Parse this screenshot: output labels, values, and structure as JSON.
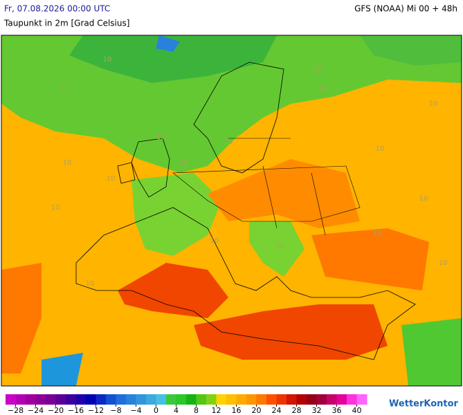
{
  "header": {
    "date": "Fr, 07.08.2026 00:00 UTC",
    "model": "GFS (NOAA) Mi 00 + 48h",
    "subtitle": "Taupunkt in 2m [Grad Celsius]"
  },
  "map": {
    "contour_labels": [
      "10",
      "10",
      "10",
      "10",
      "10",
      "10",
      "10",
      "10",
      "10",
      "10",
      "10",
      "10",
      "10",
      "10",
      "10",
      "10",
      "10",
      "10"
    ]
  },
  "colorbar": {
    "range": [
      -30,
      42
    ],
    "colors": [
      "#c800c8",
      "#b400b4",
      "#a000a0",
      "#8c0096",
      "#780096",
      "#5a0096",
      "#3c00a0",
      "#1e00aa",
      "#0000b4",
      "#0a28c8",
      "#1450d2",
      "#1e6edc",
      "#2882dc",
      "#3296dc",
      "#3caadc",
      "#46bee6",
      "#3cc83c",
      "#28c828",
      "#14b414",
      "#50c814",
      "#82d214",
      "#ffd200",
      "#ffbe00",
      "#ffaa00",
      "#ff9600",
      "#ff7800",
      "#ff5000",
      "#f03200",
      "#d21400",
      "#b40000",
      "#960014",
      "#a0003c",
      "#c8006e",
      "#e6009b",
      "#ff32dc",
      "#ff64ff"
    ],
    "ticks": [
      {
        "value": -28,
        "label": "−28"
      },
      {
        "value": -24,
        "label": "−24"
      },
      {
        "value": -20,
        "label": "−20"
      },
      {
        "value": -16,
        "label": "−16"
      },
      {
        "value": -12,
        "label": "−12"
      },
      {
        "value": -8,
        "label": "−8"
      },
      {
        "value": -4,
        "label": "−4"
      },
      0,
      4,
      8,
      12,
      16,
      20,
      24,
      28,
      32,
      36,
      40
    ]
  },
  "logo": "WetterKontor"
}
